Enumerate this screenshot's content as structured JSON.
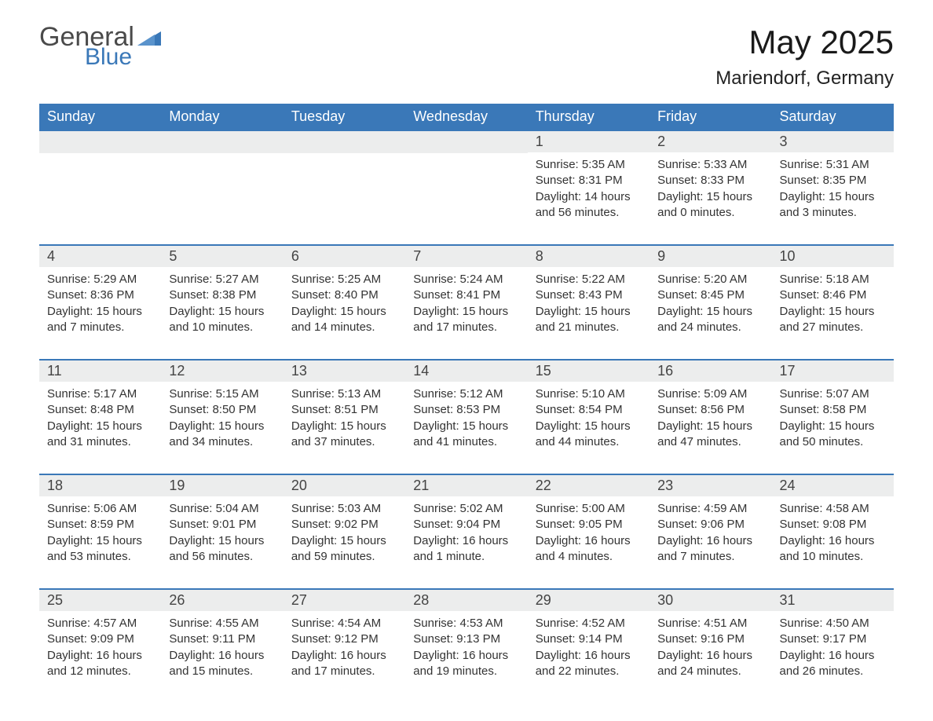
{
  "logo": {
    "line1": "General",
    "line2": "Blue",
    "icon_color": "#3a78b8",
    "text_color_gray": "#4a4a4a"
  },
  "header": {
    "month_title": "May 2025",
    "location": "Mariendorf, Germany"
  },
  "colors": {
    "header_bg": "#3a78b8",
    "header_text": "#ffffff",
    "row_border": "#3a78b8",
    "daynum_bg": "#eceded",
    "text": "#333333",
    "background": "#ffffff"
  },
  "calendar": {
    "day_names": [
      "Sunday",
      "Monday",
      "Tuesday",
      "Wednesday",
      "Thursday",
      "Friday",
      "Saturday"
    ],
    "weeks": [
      [
        null,
        null,
        null,
        null,
        {
          "day": "1",
          "sunrise": "Sunrise: 5:35 AM",
          "sunset": "Sunset: 8:31 PM",
          "daylight": "Daylight: 14 hours and 56 minutes."
        },
        {
          "day": "2",
          "sunrise": "Sunrise: 5:33 AM",
          "sunset": "Sunset: 8:33 PM",
          "daylight": "Daylight: 15 hours and 0 minutes."
        },
        {
          "day": "3",
          "sunrise": "Sunrise: 5:31 AM",
          "sunset": "Sunset: 8:35 PM",
          "daylight": "Daylight: 15 hours and 3 minutes."
        }
      ],
      [
        {
          "day": "4",
          "sunrise": "Sunrise: 5:29 AM",
          "sunset": "Sunset: 8:36 PM",
          "daylight": "Daylight: 15 hours and 7 minutes."
        },
        {
          "day": "5",
          "sunrise": "Sunrise: 5:27 AM",
          "sunset": "Sunset: 8:38 PM",
          "daylight": "Daylight: 15 hours and 10 minutes."
        },
        {
          "day": "6",
          "sunrise": "Sunrise: 5:25 AM",
          "sunset": "Sunset: 8:40 PM",
          "daylight": "Daylight: 15 hours and 14 minutes."
        },
        {
          "day": "7",
          "sunrise": "Sunrise: 5:24 AM",
          "sunset": "Sunset: 8:41 PM",
          "daylight": "Daylight: 15 hours and 17 minutes."
        },
        {
          "day": "8",
          "sunrise": "Sunrise: 5:22 AM",
          "sunset": "Sunset: 8:43 PM",
          "daylight": "Daylight: 15 hours and 21 minutes."
        },
        {
          "day": "9",
          "sunrise": "Sunrise: 5:20 AM",
          "sunset": "Sunset: 8:45 PM",
          "daylight": "Daylight: 15 hours and 24 minutes."
        },
        {
          "day": "10",
          "sunrise": "Sunrise: 5:18 AM",
          "sunset": "Sunset: 8:46 PM",
          "daylight": "Daylight: 15 hours and 27 minutes."
        }
      ],
      [
        {
          "day": "11",
          "sunrise": "Sunrise: 5:17 AM",
          "sunset": "Sunset: 8:48 PM",
          "daylight": "Daylight: 15 hours and 31 minutes."
        },
        {
          "day": "12",
          "sunrise": "Sunrise: 5:15 AM",
          "sunset": "Sunset: 8:50 PM",
          "daylight": "Daylight: 15 hours and 34 minutes."
        },
        {
          "day": "13",
          "sunrise": "Sunrise: 5:13 AM",
          "sunset": "Sunset: 8:51 PM",
          "daylight": "Daylight: 15 hours and 37 minutes."
        },
        {
          "day": "14",
          "sunrise": "Sunrise: 5:12 AM",
          "sunset": "Sunset: 8:53 PM",
          "daylight": "Daylight: 15 hours and 41 minutes."
        },
        {
          "day": "15",
          "sunrise": "Sunrise: 5:10 AM",
          "sunset": "Sunset: 8:54 PM",
          "daylight": "Daylight: 15 hours and 44 minutes."
        },
        {
          "day": "16",
          "sunrise": "Sunrise: 5:09 AM",
          "sunset": "Sunset: 8:56 PM",
          "daylight": "Daylight: 15 hours and 47 minutes."
        },
        {
          "day": "17",
          "sunrise": "Sunrise: 5:07 AM",
          "sunset": "Sunset: 8:58 PM",
          "daylight": "Daylight: 15 hours and 50 minutes."
        }
      ],
      [
        {
          "day": "18",
          "sunrise": "Sunrise: 5:06 AM",
          "sunset": "Sunset: 8:59 PM",
          "daylight": "Daylight: 15 hours and 53 minutes."
        },
        {
          "day": "19",
          "sunrise": "Sunrise: 5:04 AM",
          "sunset": "Sunset: 9:01 PM",
          "daylight": "Daylight: 15 hours and 56 minutes."
        },
        {
          "day": "20",
          "sunrise": "Sunrise: 5:03 AM",
          "sunset": "Sunset: 9:02 PM",
          "daylight": "Daylight: 15 hours and 59 minutes."
        },
        {
          "day": "21",
          "sunrise": "Sunrise: 5:02 AM",
          "sunset": "Sunset: 9:04 PM",
          "daylight": "Daylight: 16 hours and 1 minute."
        },
        {
          "day": "22",
          "sunrise": "Sunrise: 5:00 AM",
          "sunset": "Sunset: 9:05 PM",
          "daylight": "Daylight: 16 hours and 4 minutes."
        },
        {
          "day": "23",
          "sunrise": "Sunrise: 4:59 AM",
          "sunset": "Sunset: 9:06 PM",
          "daylight": "Daylight: 16 hours and 7 minutes."
        },
        {
          "day": "24",
          "sunrise": "Sunrise: 4:58 AM",
          "sunset": "Sunset: 9:08 PM",
          "daylight": "Daylight: 16 hours and 10 minutes."
        }
      ],
      [
        {
          "day": "25",
          "sunrise": "Sunrise: 4:57 AM",
          "sunset": "Sunset: 9:09 PM",
          "daylight": "Daylight: 16 hours and 12 minutes."
        },
        {
          "day": "26",
          "sunrise": "Sunrise: 4:55 AM",
          "sunset": "Sunset: 9:11 PM",
          "daylight": "Daylight: 16 hours and 15 minutes."
        },
        {
          "day": "27",
          "sunrise": "Sunrise: 4:54 AM",
          "sunset": "Sunset: 9:12 PM",
          "daylight": "Daylight: 16 hours and 17 minutes."
        },
        {
          "day": "28",
          "sunrise": "Sunrise: 4:53 AM",
          "sunset": "Sunset: 9:13 PM",
          "daylight": "Daylight: 16 hours and 19 minutes."
        },
        {
          "day": "29",
          "sunrise": "Sunrise: 4:52 AM",
          "sunset": "Sunset: 9:14 PM",
          "daylight": "Daylight: 16 hours and 22 minutes."
        },
        {
          "day": "30",
          "sunrise": "Sunrise: 4:51 AM",
          "sunset": "Sunset: 9:16 PM",
          "daylight": "Daylight: 16 hours and 24 minutes."
        },
        {
          "day": "31",
          "sunrise": "Sunrise: 4:50 AM",
          "sunset": "Sunset: 9:17 PM",
          "daylight": "Daylight: 16 hours and 26 minutes."
        }
      ]
    ]
  }
}
